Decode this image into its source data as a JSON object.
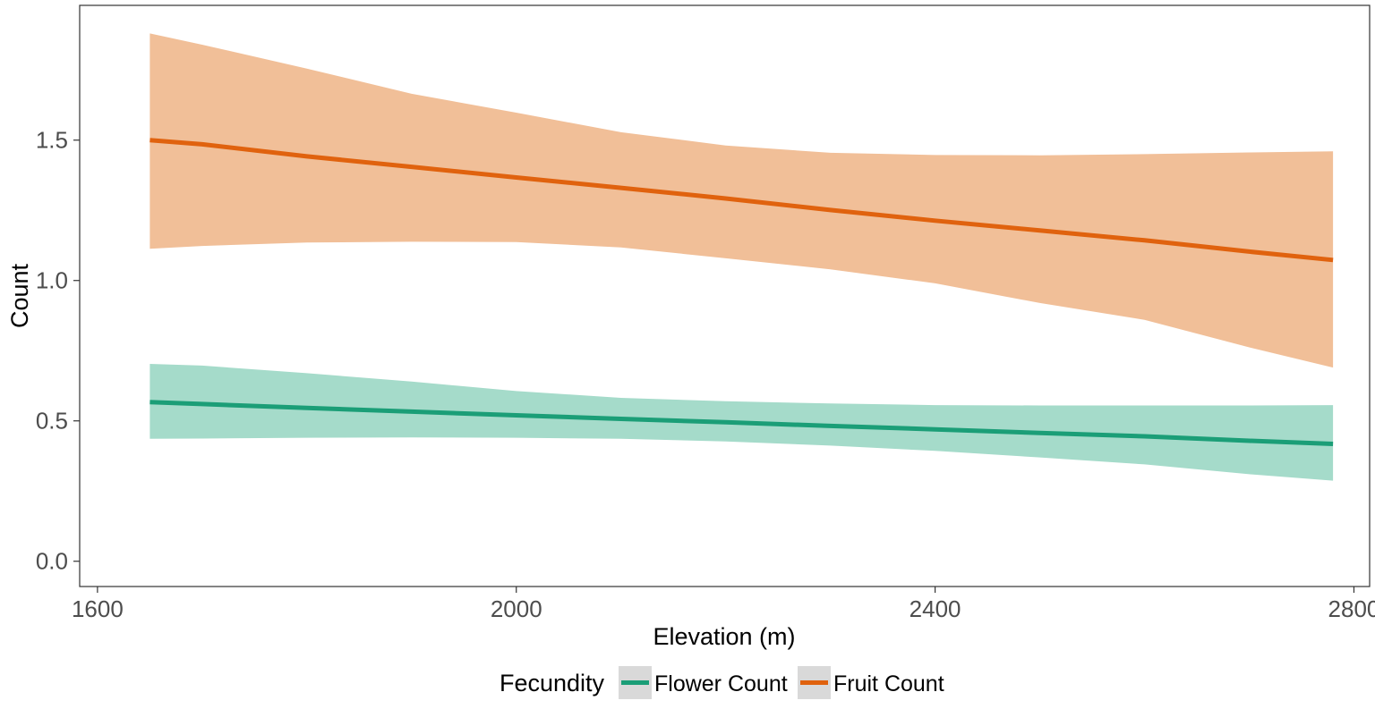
{
  "chart_data": {
    "type": "line",
    "title": "",
    "xlabel": "Elevation (m)",
    "ylabel": "Count",
    "xlim": [
      1583,
      2815
    ],
    "ylim": [
      -0.09,
      1.98
    ],
    "x_ticks": [
      1600,
      2000,
      2400,
      2800
    ],
    "y_ticks": [
      0.0,
      0.5,
      1.0,
      1.5
    ],
    "x_tick_labels": [
      "1600",
      "2000",
      "2400",
      "2800"
    ],
    "y_tick_labels": [
      "0.0",
      "0.5",
      "1.0",
      "1.5"
    ],
    "grid": false,
    "legend": {
      "position": "bottom",
      "title": "Fecundity",
      "entries": [
        "Flower Count",
        "Fruit Count"
      ]
    },
    "x": [
      1650,
      1700,
      1800,
      1900,
      2000,
      2100,
      2200,
      2300,
      2400,
      2500,
      2600,
      2700,
      2780
    ],
    "series": [
      {
        "name": "Flower Count",
        "color": "#1b9e77",
        "band_color": "#a5dbca",
        "values": [
          0.567,
          0.56,
          0.546,
          0.533,
          0.52,
          0.507,
          0.495,
          0.482,
          0.47,
          0.457,
          0.445,
          0.429,
          0.418
        ],
        "lower": [
          0.436,
          0.437,
          0.44,
          0.441,
          0.44,
          0.436,
          0.427,
          0.412,
          0.393,
          0.37,
          0.345,
          0.31,
          0.287
        ],
        "upper": [
          0.703,
          0.697,
          0.67,
          0.64,
          0.606,
          0.582,
          0.57,
          0.562,
          0.556,
          0.555,
          0.555,
          0.555,
          0.556
        ]
      },
      {
        "name": "Fruit Count",
        "color": "#e0620e",
        "band_color": "#f1bf98",
        "values": [
          1.5,
          1.485,
          1.442,
          1.405,
          1.367,
          1.33,
          1.292,
          1.251,
          1.213,
          1.178,
          1.143,
          1.103,
          1.073
        ],
        "lower": [
          1.113,
          1.123,
          1.135,
          1.138,
          1.137,
          1.118,
          1.079,
          1.04,
          0.99,
          0.92,
          0.86,
          0.762,
          0.69
        ],
        "upper": [
          1.88,
          1.84,
          1.755,
          1.665,
          1.598,
          1.528,
          1.481,
          1.455,
          1.447,
          1.446,
          1.45,
          1.456,
          1.46
        ]
      }
    ]
  }
}
